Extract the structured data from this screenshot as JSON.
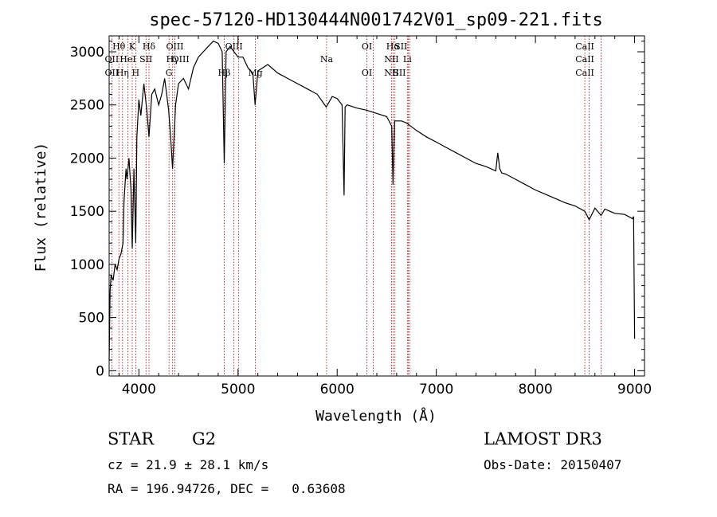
{
  "chart_data": {
    "type": "line",
    "title": "spec-57120-HD130444N001742V01_sp09-221.fits",
    "xlabel": "Wavelength (Å)",
    "ylabel": "Flux (relative)",
    "xlim": [
      3700,
      9100
    ],
    "ylim": [
      -50,
      3150
    ],
    "x_ticks": [
      4000,
      5000,
      6000,
      7000,
      8000,
      9000
    ],
    "y_ticks": [
      0,
      500,
      1000,
      1500,
      2000,
      2500,
      3000
    ],
    "x_tick_labels": [
      "4000",
      "5000",
      "6000",
      "7000",
      "8000",
      "9000"
    ],
    "y_tick_labels": [
      "0",
      "500",
      "1000",
      "1500",
      "2000",
      "2500",
      "3000"
    ],
    "series": [
      {
        "name": "spectrum",
        "x": [
          3700,
          3710,
          3720,
          3740,
          3760,
          3780,
          3800,
          3820,
          3840,
          3850,
          3870,
          3880,
          3900,
          3920,
          3933,
          3950,
          3968,
          3980,
          4000,
          4020,
          4050,
          4080,
          4102,
          4130,
          4160,
          4200,
          4230,
          4260,
          4300,
          4320,
          4340,
          4370,
          4400,
          4450,
          4500,
          4550,
          4600,
          4650,
          4700,
          4750,
          4800,
          4840,
          4861,
          4880,
          4920,
          4960,
          5000,
          5050,
          5100,
          5150,
          5172,
          5200,
          5250,
          5300,
          5400,
          5500,
          5600,
          5700,
          5800,
          5890,
          5950,
          6000,
          6050,
          6070,
          6080,
          6100,
          6200,
          6300,
          6400,
          6500,
          6550,
          6563,
          6580,
          6650,
          6700,
          6800,
          6900,
          7000,
          7100,
          7200,
          7300,
          7400,
          7500,
          7600,
          7620,
          7640,
          7660,
          7700,
          7800,
          7900,
          8000,
          8100,
          8200,
          8300,
          8400,
          8498,
          8542,
          8600,
          8662,
          8700,
          8800,
          8900,
          8980,
          8990,
          9000
        ],
        "y": [
          100,
          750,
          900,
          850,
          1000,
          950,
          1050,
          1100,
          1200,
          1600,
          1900,
          1800,
          2000,
          1700,
          1150,
          1900,
          1200,
          2200,
          2550,
          2400,
          2700,
          2450,
          2200,
          2600,
          2650,
          2500,
          2600,
          2750,
          2450,
          2200,
          1900,
          2500,
          2700,
          2750,
          2650,
          2850,
          2950,
          3000,
          3050,
          3100,
          3080,
          3000,
          1950,
          3000,
          3050,
          3000,
          2950,
          2950,
          2850,
          2800,
          2500,
          2820,
          2850,
          2880,
          2800,
          2750,
          2700,
          2650,
          2600,
          2480,
          2580,
          2560,
          2500,
          1650,
          2480,
          2500,
          2470,
          2450,
          2420,
          2390,
          2300,
          1750,
          2350,
          2350,
          2330,
          2260,
          2200,
          2150,
          2100,
          2050,
          2000,
          1950,
          1920,
          1880,
          2050,
          1900,
          1860,
          1850,
          1800,
          1750,
          1700,
          1660,
          1620,
          1580,
          1550,
          1500,
          1420,
          1530,
          1460,
          1520,
          1480,
          1470,
          1430,
          1450,
          300
        ]
      }
    ],
    "lines": [
      {
        "x": 3727,
        "labels": [
          "OII"
        ]
      },
      {
        "x": 3798,
        "labels": [
          "Hθ"
        ]
      },
      {
        "x": 3835,
        "labels": [
          "Hη"
        ]
      },
      {
        "x": 3889,
        "labels": [
          "HeI"
        ]
      },
      {
        "x": 3933,
        "labels": [
          "K"
        ]
      },
      {
        "x": 3968,
        "labels": [
          "H"
        ]
      },
      {
        "x": 4072,
        "labels": [
          "SII"
        ]
      },
      {
        "x": 4102,
        "labels": [
          "Hδ"
        ]
      },
      {
        "x": 4304,
        "labels": [
          "G"
        ]
      },
      {
        "x": 4340,
        "labels": [
          "Hγ"
        ]
      },
      {
        "x": 4363,
        "labels": [
          "OIII"
        ]
      },
      {
        "x": 4861,
        "labels": [
          "Hβ"
        ]
      },
      {
        "x": 4959,
        "labels": [
          "OIII"
        ]
      },
      {
        "x": 5007,
        "labels": [
          "OIII"
        ]
      },
      {
        "x": 5175,
        "labels": [
          "Mg"
        ]
      },
      {
        "x": 5893,
        "labels": [
          "Na"
        ]
      },
      {
        "x": 6300,
        "labels": [
          "OI"
        ]
      },
      {
        "x": 6364,
        "labels": [
          "OI"
        ]
      },
      {
        "x": 6548,
        "labels": [
          "NII"
        ]
      },
      {
        "x": 6563,
        "labels": [
          "Hα"
        ]
      },
      {
        "x": 6583,
        "labels": [
          "NII"
        ]
      },
      {
        "x": 6708,
        "labels": [
          "Li"
        ]
      },
      {
        "x": 6717,
        "labels": [
          "SII"
        ]
      },
      {
        "x": 6731,
        "labels": [
          "SII"
        ]
      },
      {
        "x": 8498,
        "labels": [
          "CaII"
        ]
      },
      {
        "x": 8542,
        "labels": [
          "CaII"
        ]
      },
      {
        "x": 8662,
        "labels": [
          "CaII"
        ]
      }
    ],
    "line_label_rows": [
      [
        "Hθ",
        "K",
        "Hδ",
        "OIII",
        "OIII",
        "OI",
        "Hα",
        "SII",
        "CaII"
      ],
      [
        "OII",
        "HeI",
        "SII",
        "Hγ",
        "OIII",
        "Na",
        "NII",
        "Li",
        "CaII"
      ],
      [
        "OII",
        "Hη",
        "H",
        "G",
        "Hβ",
        "Mg",
        "OI",
        "NII",
        "SII",
        "CaII"
      ]
    ]
  },
  "info": {
    "object_type": "STAR",
    "spectral_class": "G2",
    "survey": "LAMOST DR3",
    "cz": "cz = 21.9 ± 28.1 km/s",
    "obs_date": "Obs-Date: 20150407",
    "coords": "RA = 196.94726, DEC =   0.63608"
  }
}
